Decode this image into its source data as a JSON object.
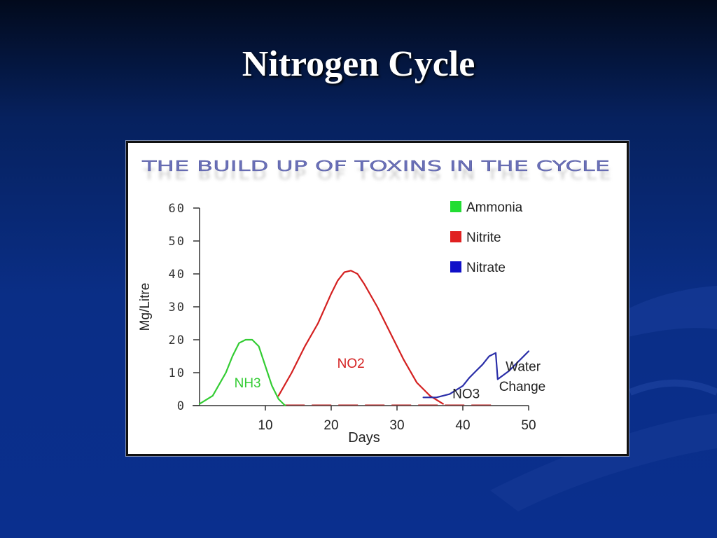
{
  "slide": {
    "title": "Nitrogen Cycle"
  },
  "chart_data": {
    "type": "line",
    "title": "The build up of Toxins in the cycle",
    "xlabel": "Days",
    "ylabel": "Mg/Litre",
    "xlim": [
      0,
      50
    ],
    "ylim": [
      0,
      60
    ],
    "x_ticks": [
      10,
      20,
      30,
      40,
      50
    ],
    "y_ticks": [
      0,
      10,
      20,
      30,
      40,
      50,
      60
    ],
    "legend_position": "top-right",
    "grid": false,
    "series": [
      {
        "name": "Ammonia",
        "label": "NH3",
        "color": "#33cc33",
        "x": [
          0,
          2,
          4,
          5,
          6,
          7,
          8,
          9,
          10,
          11,
          12,
          13
        ],
        "y": [
          0.5,
          3,
          10,
          15,
          19,
          20,
          20,
          18,
          12,
          6,
          2,
          0
        ]
      },
      {
        "name": "Nitrite",
        "label": "NO2",
        "color": "#d42020",
        "x": [
          12,
          14,
          16,
          18,
          20,
          21,
          22,
          23,
          24,
          25,
          27,
          29,
          31,
          33,
          35,
          37
        ],
        "y": [
          3,
          10,
          18,
          25,
          34,
          38,
          40.5,
          41,
          40,
          37,
          30,
          22,
          14,
          7,
          3,
          0.5
        ]
      },
      {
        "name": "Nitrate",
        "label": "NO3",
        "color": "#2a2ea8",
        "x": [
          34,
          36,
          38,
          40,
          41,
          42,
          43,
          44,
          45,
          45.3,
          47,
          50
        ],
        "y": [
          2.5,
          2.5,
          3.5,
          6,
          8.5,
          10.5,
          12.5,
          15,
          16,
          8,
          10.5,
          16.5
        ]
      }
    ],
    "annotations": [
      "Water",
      "Change"
    ]
  }
}
